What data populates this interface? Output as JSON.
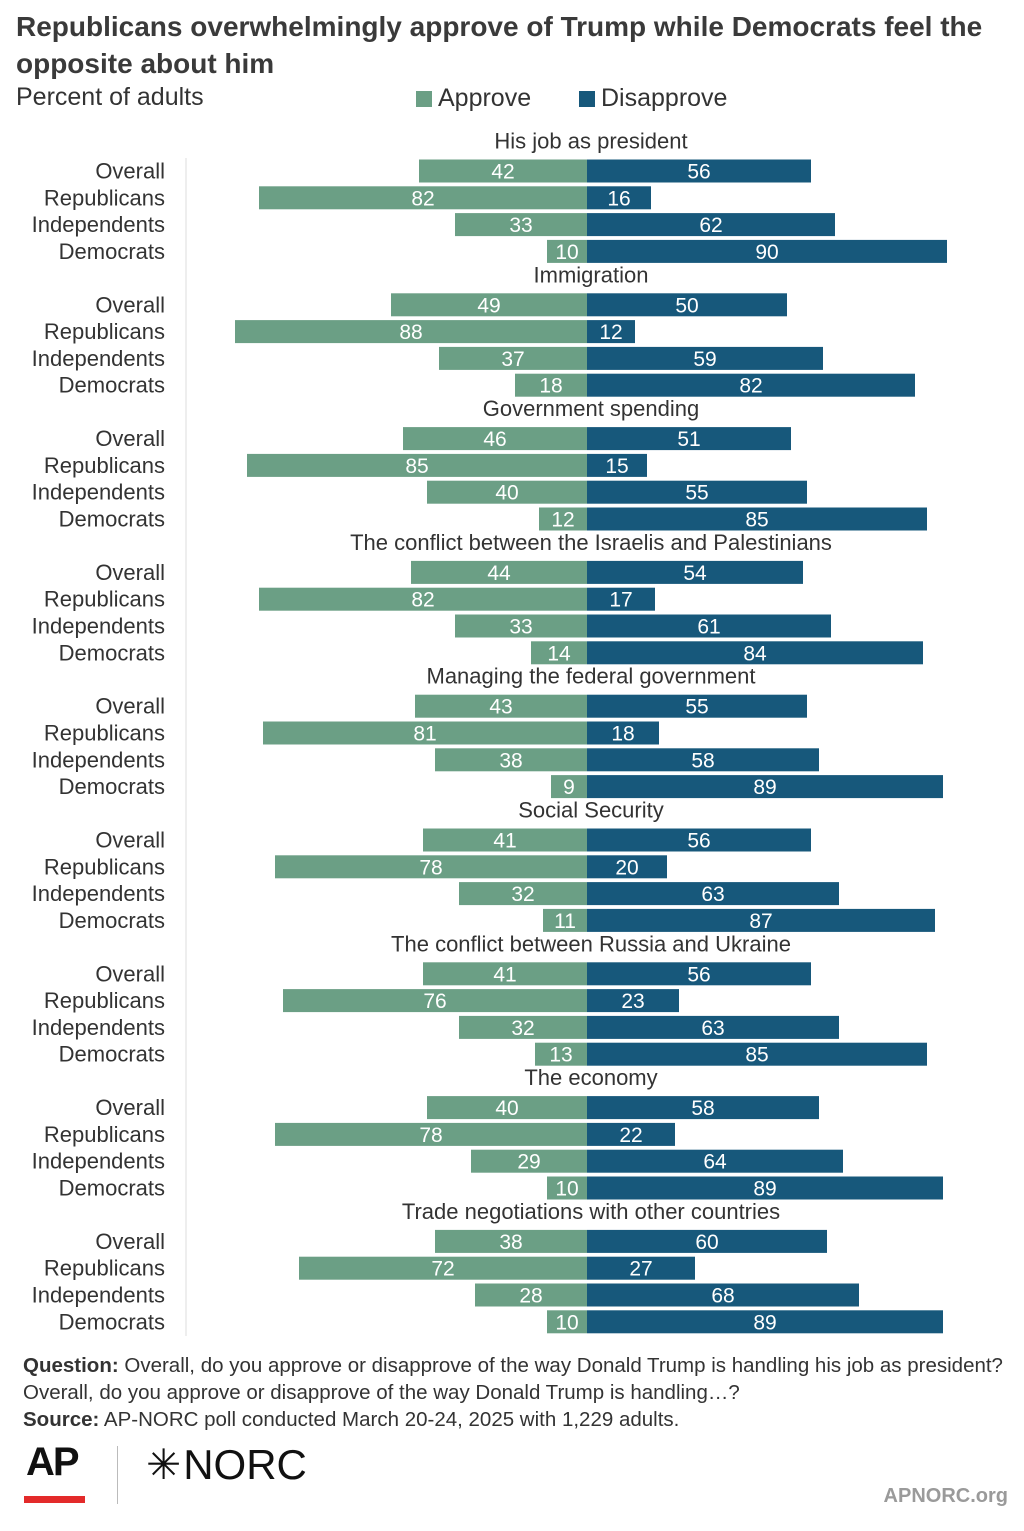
{
  "title": "Republicans overwhelmingly approve of Trump while Democrats feel the opposite about him",
  "subtitle": "Percent of adults",
  "legend": {
    "approve": "Approve",
    "disapprove": "Disapprove"
  },
  "colors": {
    "approve": "#6b9f85",
    "disapprove": "#17587b",
    "text": "#333333",
    "axis": "#dddddd"
  },
  "chart_data": {
    "type": "bar",
    "orientation": "diverging-horizontal",
    "categories": [
      "Overall",
      "Republicans",
      "Independents",
      "Democrats"
    ],
    "groups": [
      {
        "title": "His job as president",
        "approve": [
          42,
          82,
          33,
          10
        ],
        "disapprove": [
          56,
          16,
          62,
          90
        ]
      },
      {
        "title": "Immigration",
        "approve": [
          49,
          88,
          37,
          18
        ],
        "disapprove": [
          50,
          12,
          59,
          82
        ]
      },
      {
        "title": "Government spending",
        "approve": [
          46,
          85,
          40,
          12
        ],
        "disapprove": [
          51,
          15,
          55,
          85
        ]
      },
      {
        "title": "The conflict between the Israelis and Palestinians",
        "approve": [
          44,
          82,
          33,
          14
        ],
        "disapprove": [
          54,
          17,
          61,
          84
        ]
      },
      {
        "title": "Managing the federal government",
        "approve": [
          43,
          81,
          38,
          9
        ],
        "disapprove": [
          55,
          18,
          58,
          89
        ]
      },
      {
        "title": "Social Security",
        "approve": [
          41,
          78,
          32,
          11
        ],
        "disapprove": [
          56,
          20,
          63,
          87
        ]
      },
      {
        "title": "The conflict between Russia and Ukraine",
        "approve": [
          41,
          76,
          32,
          13
        ],
        "disapprove": [
          56,
          23,
          63,
          85
        ]
      },
      {
        "title": "The economy",
        "approve": [
          40,
          78,
          29,
          10
        ],
        "disapprove": [
          58,
          22,
          64,
          89
        ]
      },
      {
        "title": "Trade negotiations with other countries",
        "approve": [
          38,
          72,
          28,
          10
        ],
        "disapprove": [
          60,
          27,
          68,
          89
        ]
      }
    ],
    "series": [
      {
        "name": "Approve",
        "key": "approve"
      },
      {
        "name": "Disapprove",
        "key": "disapprove"
      }
    ]
  },
  "footer": {
    "question_label": "Question:",
    "question_text": "Overall, do you approve or disapprove of the way Donald Trump is handling his job as president? Overall, do you approve or disapprove of the way Donald Trump is handling…?",
    "source_label": "Source:",
    "source_text": "AP-NORC poll conducted March 20-24, 2025 with 1,229 adults."
  },
  "logos": {
    "ap": "AP",
    "norc": "NORC",
    "norc_mark": "✳"
  },
  "site": "APNORC.org"
}
